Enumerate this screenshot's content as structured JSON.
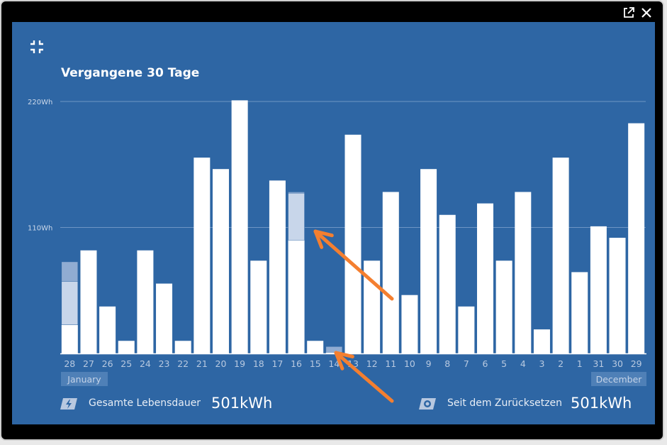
{
  "panel": {
    "title": "Vergangene 30 Tage",
    "icons": {
      "collapse": "collapse-icon",
      "external": "external-link-icon",
      "close": "close-icon"
    }
  },
  "chart_data": {
    "type": "bar",
    "stacked": true,
    "ylim": [
      0,
      220
    ],
    "y_ticks": [
      {
        "value": 220,
        "label": "220Wh"
      },
      {
        "value": 110,
        "label": "110Wh"
      }
    ],
    "categories": [
      "28",
      "27",
      "26",
      "25",
      "24",
      "23",
      "22",
      "21",
      "20",
      "19",
      "18",
      "17",
      "16",
      "15",
      "14",
      "13",
      "12",
      "11",
      "10",
      "9",
      "8",
      "7",
      "6",
      "5",
      "4",
      "3",
      "2",
      "1",
      "31",
      "30",
      "29"
    ],
    "month_labels": [
      {
        "label": "January",
        "position": "left"
      },
      {
        "label": "December",
        "position": "right"
      }
    ],
    "series": [
      {
        "color": "#ffffff",
        "values": [
          25,
          90,
          41,
          11,
          90,
          61,
          11,
          171,
          161,
          221,
          81,
          151,
          99,
          11,
          1,
          191,
          81,
          141,
          51,
          161,
          121,
          41,
          131,
          81,
          141,
          21,
          171,
          71,
          111,
          101,
          201
        ]
      },
      {
        "color": "#c8d6ea",
        "values": [
          38,
          0,
          0,
          0,
          0,
          0,
          0,
          0,
          0,
          0,
          0,
          0,
          41,
          0,
          0,
          0,
          0,
          0,
          0,
          0,
          0,
          0,
          0,
          0,
          0,
          0,
          0,
          0,
          0,
          0,
          0
        ]
      },
      {
        "color": "#90acd2",
        "values": [
          17,
          0,
          0,
          0,
          0,
          0,
          0,
          0,
          0,
          0,
          0,
          0,
          1,
          0,
          5,
          0,
          0,
          0,
          0,
          0,
          0,
          0,
          0,
          0,
          0,
          0,
          0,
          0,
          0,
          0,
          0
        ]
      }
    ]
  },
  "footer": {
    "lifetime": {
      "label": "Gesamte Lebensdauer",
      "value": "501kWh",
      "icon": "lightning-icon"
    },
    "since_reset": {
      "label": "Seit dem Zurücksetzen",
      "value": "501kWh",
      "icon": "reset-icon"
    }
  },
  "annotations": {
    "arrow_color": "#f47f30"
  }
}
